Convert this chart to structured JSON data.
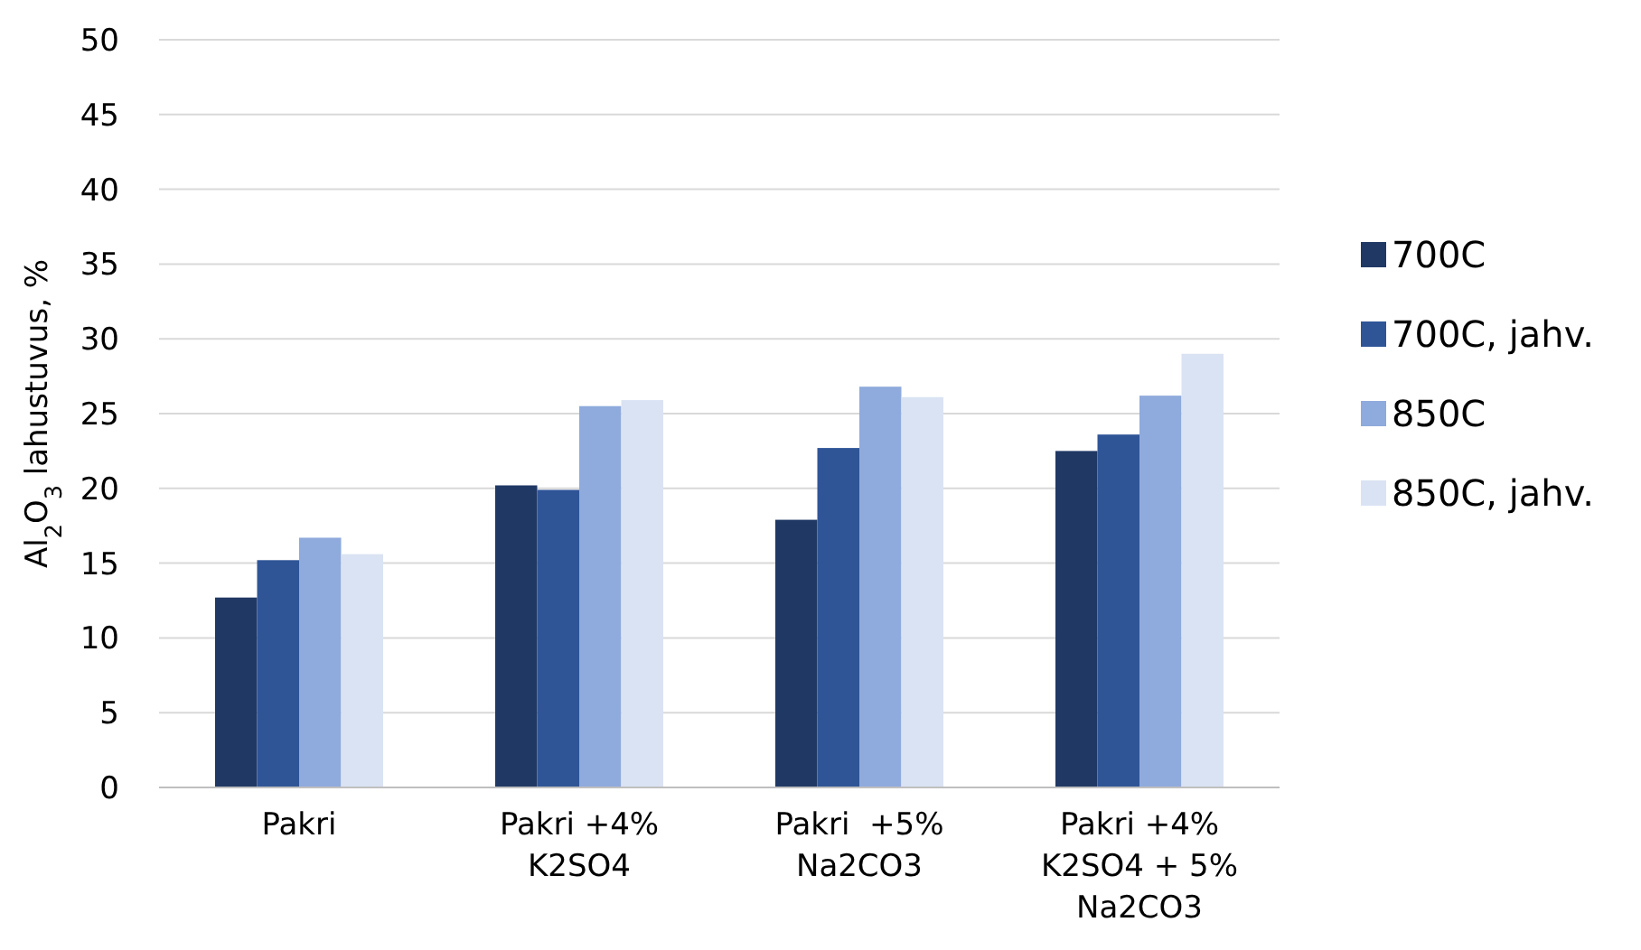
{
  "chart_data": {
    "type": "bar",
    "ylabel": "Al$_{2}$O$_{3}$ lahustuvus, %",
    "categories": [
      "Pakri",
      "Pakri +4%\nK2SO4",
      "Pakri  +5%\nNa2CO3",
      "Pakri +4%\nK2SO4 + 5%\nNa2CO3"
    ],
    "series": [
      {
        "name": "700C",
        "color": "#203864",
        "values": [
          12.7,
          20.2,
          17.9,
          22.5
        ]
      },
      {
        "name": "700C, jahv.",
        "color": "#2f5597",
        "values": [
          15.2,
          19.9,
          22.7,
          23.6
        ]
      },
      {
        "name": "850C",
        "color": "#8faadc",
        "values": [
          16.7,
          25.5,
          26.8,
          26.2
        ]
      },
      {
        "name": "850C, jahv.",
        "color": "#dae3f3",
        "values": [
          15.6,
          25.9,
          26.1,
          29.0
        ]
      }
    ],
    "ylim": [
      0,
      50
    ],
    "yticks": [
      0,
      5,
      10,
      15,
      20,
      25,
      30,
      35,
      40,
      45,
      50
    ],
    "grid": "y",
    "legend": "right"
  }
}
